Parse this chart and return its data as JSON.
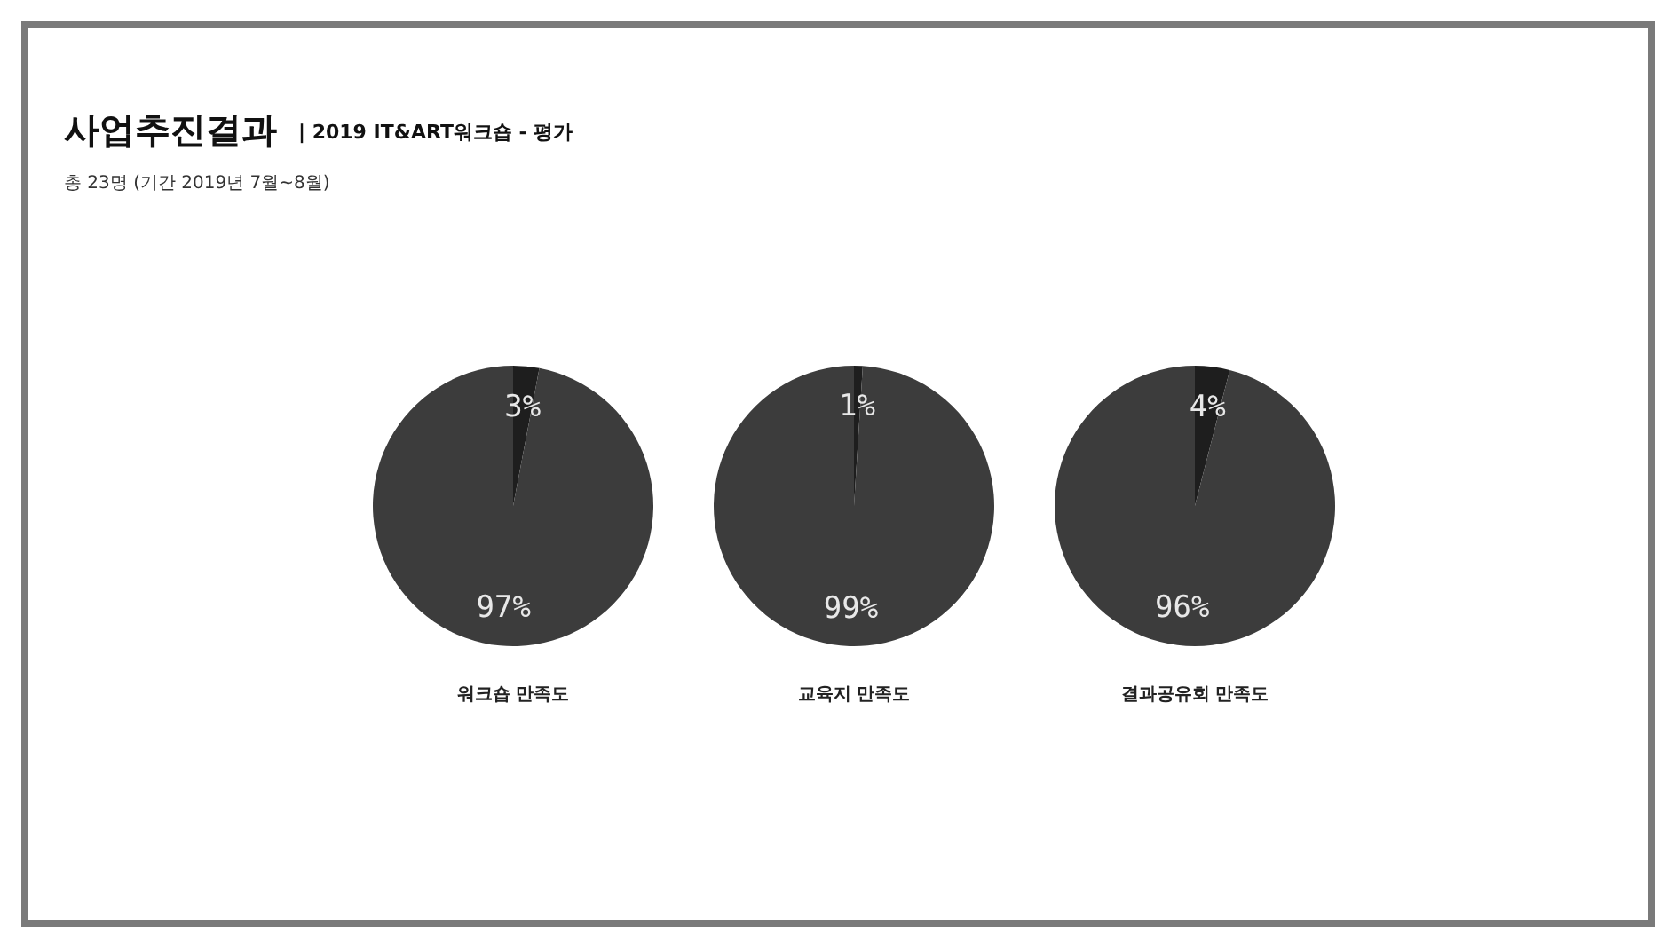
{
  "chart_data": [
    {
      "type": "pie",
      "title": "사업추진결과",
      "subtitle": "| 2019 IT&ART워크숍 - 평가",
      "annotations": [
        "총 23명 (기간 2019년 7월~8월)"
      ],
      "xlabel": "워크숍 만족도",
      "categories": [
        null,
        null
      ],
      "values": [
        3,
        97
      ],
      "value_labels": [
        "3%",
        "97%"
      ],
      "colors": [
        "#1e1e1e",
        "#3c3c3c"
      ]
    },
    {
      "type": "pie",
      "xlabel": "교육지 만족도",
      "categories": [
        null,
        null
      ],
      "values": [
        1,
        99
      ],
      "value_labels": [
        "1%",
        "99%"
      ],
      "colors": [
        "#1e1e1e",
        "#3c3c3c"
      ]
    },
    {
      "type": "pie",
      "xlabel": "결과공유회 만족도",
      "categories": [
        null,
        null
      ],
      "values": [
        4,
        96
      ],
      "value_labels": [
        "4%",
        "96%"
      ],
      "colors": [
        "#1e1e1e",
        "#3c3c3c"
      ]
    }
  ]
}
